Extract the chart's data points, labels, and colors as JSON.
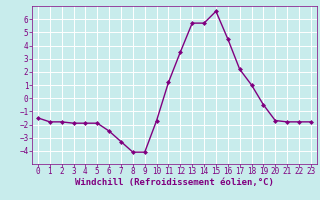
{
  "x": [
    0,
    1,
    2,
    3,
    4,
    5,
    6,
    7,
    8,
    9,
    10,
    11,
    12,
    13,
    14,
    15,
    16,
    17,
    18,
    19,
    20,
    21,
    22,
    23
  ],
  "y": [
    -1.5,
    -1.8,
    -1.8,
    -1.9,
    -1.9,
    -1.9,
    -2.5,
    -3.3,
    -4.1,
    -4.1,
    -1.7,
    1.2,
    3.5,
    5.7,
    5.7,
    6.6,
    4.5,
    2.2,
    1.0,
    -0.5,
    -1.7,
    -1.8,
    -1.8,
    -1.8
  ],
  "line_color": "#800080",
  "marker": "D",
  "marker_size": 2.0,
  "bg_color": "#c8ecec",
  "grid_color": "#ffffff",
  "xlabel": "Windchill (Refroidissement éolien,°C)",
  "xlabel_color": "#800080",
  "tick_color": "#800080",
  "ylim": [
    -5,
    7
  ],
  "xlim": [
    -0.5,
    23.5
  ],
  "yticks": [
    -4,
    -3,
    -2,
    -1,
    0,
    1,
    2,
    3,
    4,
    5,
    6
  ],
  "xticks": [
    0,
    1,
    2,
    3,
    4,
    5,
    6,
    7,
    8,
    9,
    10,
    11,
    12,
    13,
    14,
    15,
    16,
    17,
    18,
    19,
    20,
    21,
    22,
    23
  ],
  "tick_fontsize": 5.5,
  "xlabel_fontsize": 6.5,
  "line_width": 1.0
}
